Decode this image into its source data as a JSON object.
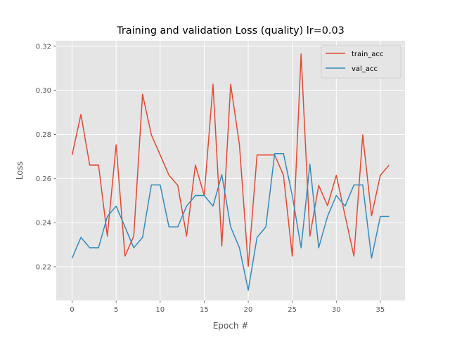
{
  "chart_data": {
    "type": "line",
    "title": "Training and validation Loss (quality) lr=0.03",
    "xlabel": "Epoch #",
    "ylabel": "Loss",
    "xlim": [
      -1.8,
      37.8
    ],
    "ylim": [
      0.2047,
      0.3225
    ],
    "xticks": [
      0,
      5,
      10,
      15,
      20,
      25,
      30,
      35
    ],
    "yticks": [
      0.22,
      0.24,
      0.26,
      0.28,
      0.3,
      0.32
    ],
    "ytick_labels": [
      "0.22",
      "0.24",
      "0.26",
      "0.28",
      "0.30",
      "0.32"
    ],
    "grid": true,
    "legend_position": "top-right",
    "x": [
      0,
      1,
      2,
      3,
      4,
      5,
      6,
      7,
      8,
      9,
      10,
      11,
      12,
      13,
      14,
      15,
      16,
      17,
      18,
      19,
      20,
      21,
      22,
      23,
      24,
      25,
      26,
      27,
      28,
      29,
      30,
      31,
      32,
      33,
      34,
      35,
      36
    ],
    "series": [
      {
        "name": "train_acc",
        "color": "#E24A33",
        "values": [
          0.2707,
          0.2891,
          0.2661,
          0.2661,
          0.2339,
          0.2753,
          0.2248,
          0.2339,
          0.2982,
          0.2798,
          0.2707,
          0.2615,
          0.2569,
          0.2339,
          0.2661,
          0.2523,
          0.3028,
          0.2294,
          0.3028,
          0.2753,
          0.2202,
          0.2707,
          0.2707,
          0.2707,
          0.2615,
          0.2248,
          0.3165,
          0.2339,
          0.2569,
          0.2477,
          0.2615,
          0.2431,
          0.2248,
          0.2798,
          0.2431,
          0.2615,
          0.2661
        ]
      },
      {
        "name": "val_acc",
        "color": "#348ABD",
        "values": [
          0.2239,
          0.2333,
          0.2286,
          0.2286,
          0.2428,
          0.2475,
          0.2381,
          0.2286,
          0.2333,
          0.2571,
          0.2571,
          0.2381,
          0.2381,
          0.2475,
          0.2523,
          0.2523,
          0.2475,
          0.2618,
          0.2381,
          0.2286,
          0.2094,
          0.2333,
          0.2381,
          0.2713,
          0.2713,
          0.2523,
          0.2286,
          0.2665,
          0.2286,
          0.2428,
          0.2523,
          0.2475,
          0.2571,
          0.2571,
          0.2239,
          0.2428,
          0.2428
        ]
      }
    ]
  }
}
